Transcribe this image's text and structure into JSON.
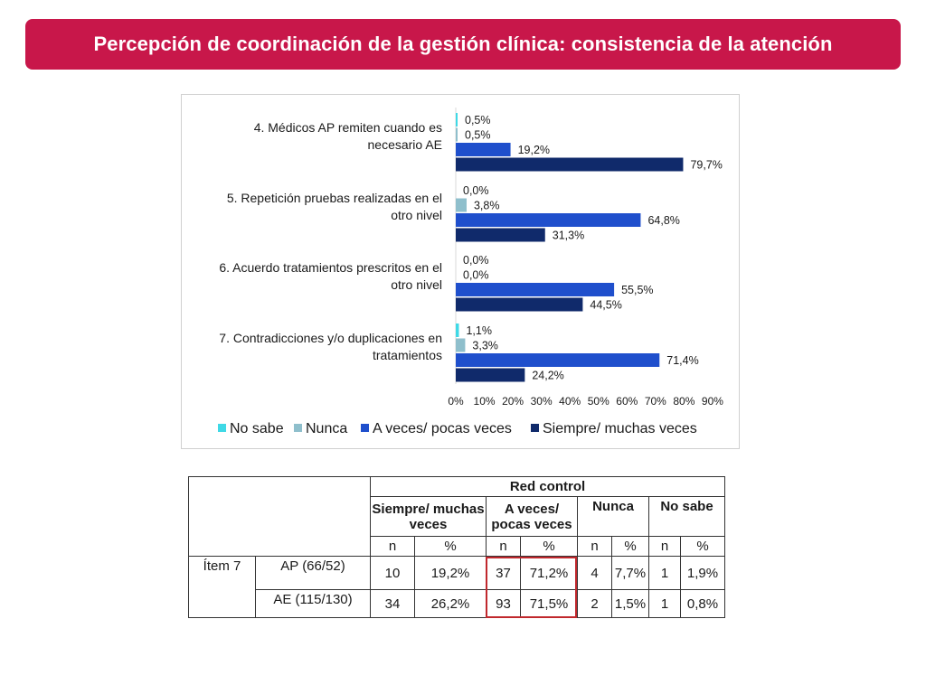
{
  "title": "Percepción de coordinación de la gestión clínica: consistencia de la atención",
  "colors": {
    "title_bg": "#c8174a",
    "no_sabe": "#3fd9e6",
    "nunca": "#8fbfcc",
    "a_veces": "#1f4fcc",
    "siempre": "#102a6b",
    "highlight": "#c0282d"
  },
  "chart_data": {
    "type": "bar",
    "orientation": "horizontal",
    "categories": [
      "4. Médicos AP remiten cuando es necesario AE",
      "5. Repetición pruebas realizadas en el otro nivel",
      "6. Acuerdo tratamientos prescritos en el otro nivel",
      "7. Contradicciones y/o duplicaciones en tratamientos"
    ],
    "category_lines": [
      [
        "4. Médicos AP remiten cuando es",
        "necesario AE"
      ],
      [
        "5. Repetición pruebas realizadas en el",
        "otro nivel"
      ],
      [
        "6. Acuerdo tratamientos prescritos en el",
        "otro nivel"
      ],
      [
        "7. Contradicciones y/o duplicaciones en",
        "tratamientos"
      ]
    ],
    "series": [
      {
        "name": "No sabe",
        "values": [
          0.5,
          0.0,
          0.0,
          1.1
        ],
        "labels": [
          "0,5%",
          "0,0%",
          "0,0%",
          "1,1%"
        ]
      },
      {
        "name": "Nunca",
        "values": [
          0.5,
          3.8,
          0.0,
          3.3
        ],
        "labels": [
          "0,5%",
          "3,8%",
          "0,0%",
          "3,3%"
        ]
      },
      {
        "name": "A veces/ pocas veces",
        "values": [
          19.2,
          64.8,
          55.5,
          71.4
        ],
        "labels": [
          "19,2%",
          "64,8%",
          "55,5%",
          "71,4%"
        ]
      },
      {
        "name": "Siempre/ muchas veces",
        "values": [
          79.7,
          31.3,
          44.5,
          24.2
        ],
        "labels": [
          "79,7%",
          "31,3%",
          "44,5%",
          "24,2%"
        ]
      }
    ],
    "xlim": [
      0,
      90
    ],
    "xticks": [
      "0%",
      "10%",
      "20%",
      "30%",
      "40%",
      "50%",
      "60%",
      "70%",
      "80%",
      "90%"
    ],
    "grid": false,
    "legend_position": "bottom"
  },
  "table": {
    "group_header": "Red control",
    "col_siempre": "Siempre/ muchas veces",
    "col_aveces": "A veces/ pocas veces",
    "col_nunca": "Nunca",
    "col_nosabe": "No sabe",
    "sub_n": "n",
    "sub_pct": "%",
    "item_label": "Ítem 7",
    "rows": [
      {
        "label": "AP (66/52)",
        "cells": [
          "10",
          "19,2%",
          "37",
          "71,2%",
          "4",
          "7,7%",
          "1",
          "1,9%"
        ]
      },
      {
        "label": "AE (115/130)",
        "cells": [
          "34",
          "26,2%",
          "93",
          "71,5%",
          "2",
          "1,5%",
          "1",
          "0,8%"
        ]
      }
    ]
  }
}
